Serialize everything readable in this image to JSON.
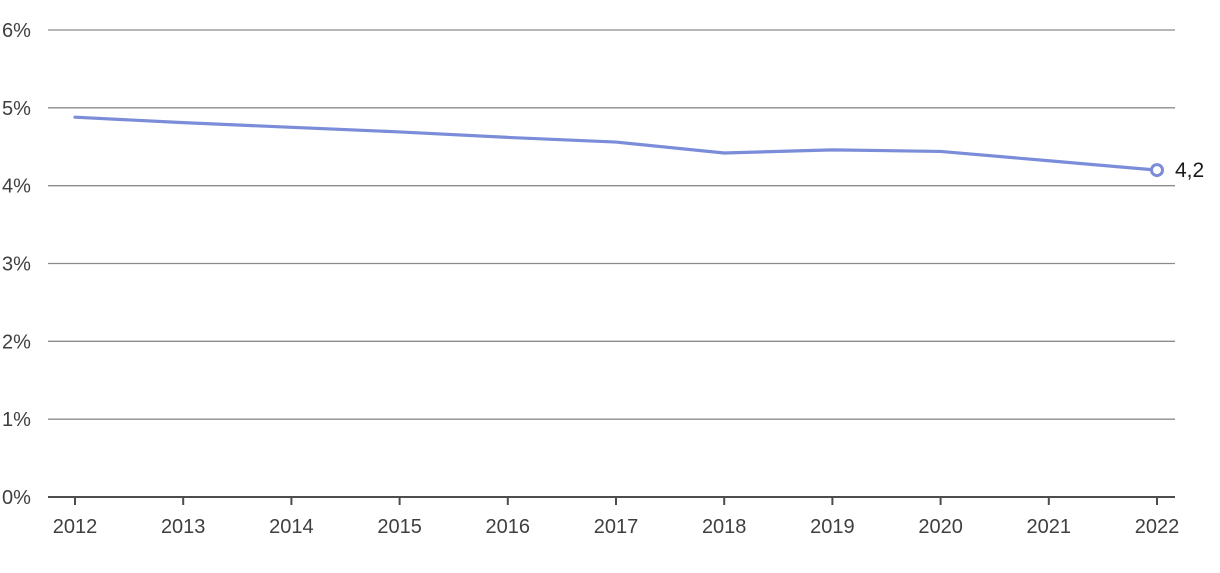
{
  "chart_data": {
    "type": "line",
    "title": "",
    "xlabel": "",
    "ylabel": "",
    "categories": [
      "2012",
      "2013",
      "2014",
      "2015",
      "2016",
      "2017",
      "2018",
      "2019",
      "2020",
      "2021",
      "2022"
    ],
    "values": [
      4.88,
      4.81,
      4.75,
      4.69,
      4.62,
      4.56,
      4.42,
      4.46,
      4.44,
      4.32,
      4.2
    ],
    "end_label": "4,2",
    "y_ticks": [
      "0%",
      "1%",
      "2%",
      "3%",
      "4%",
      "5%",
      "6%"
    ],
    "ylim": [
      0,
      6
    ],
    "grid": true,
    "legend": false,
    "colors": {
      "line": "#7b8cd8",
      "marker_fill": "#ffffff",
      "grid": "#8c8c8c",
      "axis": "#4d4d4d",
      "tick_text": "#3f3f3f",
      "end_label_text": "#1a1a1a"
    }
  }
}
